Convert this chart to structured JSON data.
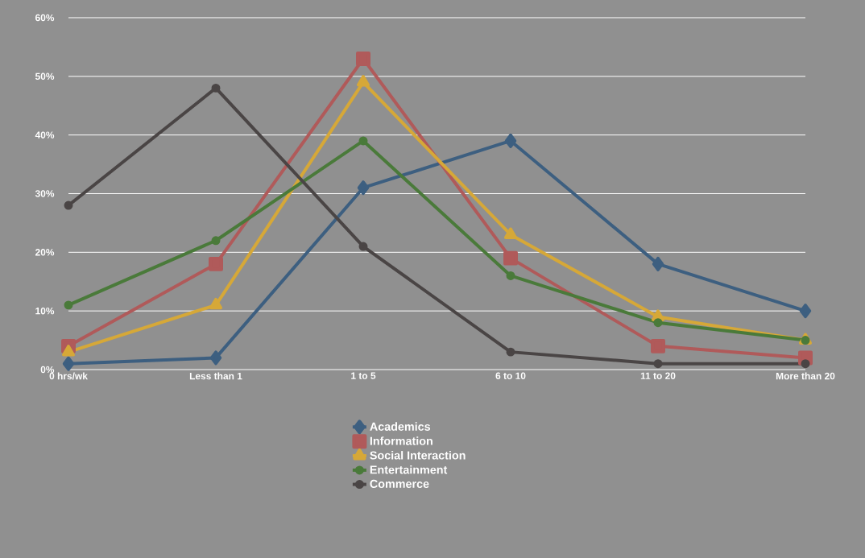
{
  "chart_data": {
    "type": "line",
    "categories": [
      "0 hrs/wk",
      "Less than 1",
      "1 to 5",
      "6 to 10",
      "11 to 20",
      "More than 20"
    ],
    "series": [
      {
        "name": "Academics",
        "color": "#3d5f80",
        "marker": "diamond",
        "values": [
          1,
          2,
          31,
          39,
          18,
          10
        ]
      },
      {
        "name": "Information",
        "color": "#b05a5a",
        "marker": "square",
        "values": [
          4,
          18,
          53,
          19,
          4,
          2
        ]
      },
      {
        "name": "Social Interaction",
        "color": "#d6a838",
        "marker": "triangle",
        "values": [
          3,
          11,
          49,
          23,
          9,
          5
        ]
      },
      {
        "name": "Entertainment",
        "color": "#4a7a3a",
        "marker": "circle",
        "values": [
          11,
          22,
          39,
          16,
          8,
          5
        ]
      },
      {
        "name": "Commerce",
        "color": "#4a4545",
        "marker": "circle",
        "values": [
          28,
          48,
          21,
          3,
          1,
          1
        ]
      }
    ],
    "ylim": [
      0,
      60
    ],
    "yticks": [
      {
        "value": 0,
        "label": "0%"
      },
      {
        "value": 10,
        "label": "10%"
      },
      {
        "value": 20,
        "label": "20%"
      },
      {
        "value": 30,
        "label": "30%"
      },
      {
        "value": 40,
        "label": "40%"
      },
      {
        "value": 50,
        "label": "50%"
      },
      {
        "value": 60,
        "label": "60%"
      }
    ],
    "grid": "y",
    "legend": "bottom",
    "line_style": "solid"
  }
}
